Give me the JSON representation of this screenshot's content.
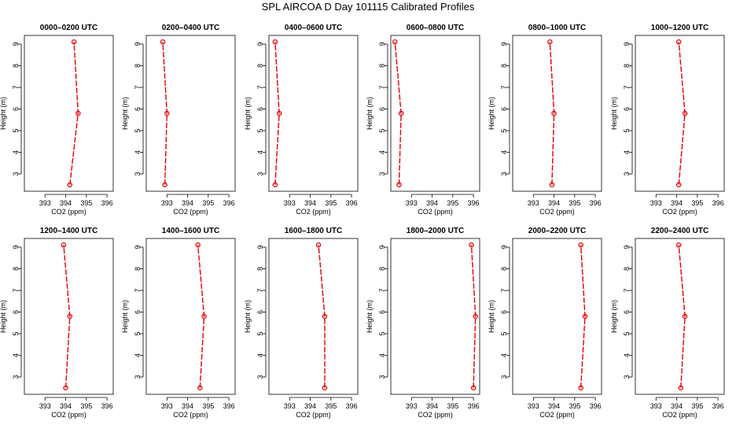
{
  "figure": {
    "title": "SPL AIRCOA D  Day 101115  Calibrated Profiles"
  },
  "style": {
    "line_color": "#e00000",
    "marker_color": "#e00000",
    "axis_color": "#000000"
  },
  "chart_data": [
    {
      "type": "line",
      "title": "0000–0200 UTC",
      "xlabel": "CO2 (ppm)",
      "ylabel": "Height (m)",
      "xlim": [
        392,
        396.3
      ],
      "ylim": [
        2.2,
        9.4
      ],
      "xticks": [
        393,
        394,
        395,
        396
      ],
      "yticks": [
        3,
        4,
        5,
        6,
        7,
        8,
        9
      ],
      "grid": false,
      "series": [
        {
          "x": [
            394.2,
            394.6,
            394.4
          ],
          "y": [
            2.5,
            5.8,
            9.1
          ]
        }
      ]
    },
    {
      "type": "line",
      "title": "0200–0400 UTC",
      "xlabel": "CO2 (ppm)",
      "ylabel": "Height (m)",
      "xlim": [
        392,
        396.3
      ],
      "ylim": [
        2.2,
        9.4
      ],
      "xticks": [
        393,
        394,
        395,
        396
      ],
      "yticks": [
        3,
        4,
        5,
        6,
        7,
        8,
        9
      ],
      "grid": false,
      "series": [
        {
          "x": [
            392.9,
            393.0,
            392.8
          ],
          "y": [
            2.5,
            5.8,
            9.1
          ]
        }
      ]
    },
    {
      "type": "line",
      "title": "0400–0600 UTC",
      "xlabel": "CO2 (ppm)",
      "ylabel": "Height (m)",
      "xlim": [
        392,
        396.3
      ],
      "ylim": [
        2.2,
        9.4
      ],
      "xticks": [
        393,
        394,
        395,
        396
      ],
      "yticks": [
        3,
        4,
        5,
        6,
        7,
        8,
        9
      ],
      "grid": false,
      "series": [
        {
          "x": [
            392.3,
            392.5,
            392.3
          ],
          "y": [
            2.5,
            5.8,
            9.1
          ]
        }
      ]
    },
    {
      "type": "line",
      "title": "0600–0800 UTC",
      "xlabel": "CO2 (ppm)",
      "ylabel": "Height (m)",
      "xlim": [
        392,
        396.3
      ],
      "ylim": [
        2.2,
        9.4
      ],
      "xticks": [
        393,
        394,
        395,
        396
      ],
      "yticks": [
        3,
        4,
        5,
        6,
        7,
        8,
        9
      ],
      "grid": false,
      "series": [
        {
          "x": [
            392.4,
            392.5,
            392.2
          ],
          "y": [
            2.5,
            5.8,
            9.1
          ]
        }
      ]
    },
    {
      "type": "line",
      "title": "0800–1000 UTC",
      "xlabel": "CO2 (ppm)",
      "ylabel": "Height (m)",
      "xlim": [
        392,
        396.3
      ],
      "ylim": [
        2.2,
        9.4
      ],
      "xticks": [
        393,
        394,
        395,
        396
      ],
      "yticks": [
        3,
        4,
        5,
        6,
        7,
        8,
        9
      ],
      "grid": false,
      "series": [
        {
          "x": [
            393.9,
            394.0,
            393.8
          ],
          "y": [
            2.5,
            5.8,
            9.1
          ]
        }
      ]
    },
    {
      "type": "line",
      "title": "1000–1200 UTC",
      "xlabel": "CO2 (ppm)",
      "ylabel": "Height (m)",
      "xlim": [
        392,
        396.3
      ],
      "ylim": [
        2.2,
        9.4
      ],
      "xticks": [
        393,
        394,
        395,
        396
      ],
      "yticks": [
        3,
        4,
        5,
        6,
        7,
        8,
        9
      ],
      "grid": false,
      "series": [
        {
          "x": [
            394.1,
            394.4,
            394.1
          ],
          "y": [
            2.5,
            5.8,
            9.1
          ]
        }
      ]
    },
    {
      "type": "line",
      "title": "1200–1400 UTC",
      "xlabel": "CO2 (ppm)",
      "ylabel": "Height (m)",
      "xlim": [
        392,
        396.3
      ],
      "ylim": [
        2.2,
        9.4
      ],
      "xticks": [
        393,
        394,
        395,
        396
      ],
      "yticks": [
        3,
        4,
        5,
        6,
        7,
        8,
        9
      ],
      "grid": false,
      "series": [
        {
          "x": [
            394.0,
            394.2,
            393.9
          ],
          "y": [
            2.5,
            5.8,
            9.1
          ]
        }
      ]
    },
    {
      "type": "line",
      "title": "1400–1600 UTC",
      "xlabel": "CO2 (ppm)",
      "ylabel": "Height (m)",
      "xlim": [
        392,
        396.3
      ],
      "ylim": [
        2.2,
        9.4
      ],
      "xticks": [
        393,
        394,
        395,
        396
      ],
      "yticks": [
        3,
        4,
        5,
        6,
        7,
        8,
        9
      ],
      "grid": false,
      "series": [
        {
          "x": [
            394.6,
            394.8,
            394.5
          ],
          "y": [
            2.5,
            5.8,
            9.1
          ]
        }
      ]
    },
    {
      "type": "line",
      "title": "1600–1800 UTC",
      "xlabel": "CO2 (ppm)",
      "ylabel": "Height (m)",
      "xlim": [
        392,
        396.3
      ],
      "ylim": [
        2.2,
        9.4
      ],
      "xticks": [
        393,
        394,
        395,
        396
      ],
      "yticks": [
        3,
        4,
        5,
        6,
        7,
        8,
        9
      ],
      "grid": false,
      "series": [
        {
          "x": [
            394.7,
            394.7,
            394.4
          ],
          "y": [
            2.5,
            5.8,
            9.1
          ]
        }
      ]
    },
    {
      "type": "line",
      "title": "1800–2000 UTC",
      "xlabel": "CO2 (ppm)",
      "ylabel": "Height (m)",
      "xlim": [
        392,
        396.3
      ],
      "ylim": [
        2.2,
        9.4
      ],
      "xticks": [
        393,
        394,
        395,
        396
      ],
      "yticks": [
        3,
        4,
        5,
        6,
        7,
        8,
        9
      ],
      "grid": false,
      "series": [
        {
          "x": [
            396.0,
            396.1,
            395.9
          ],
          "y": [
            2.5,
            5.8,
            9.1
          ]
        }
      ]
    },
    {
      "type": "line",
      "title": "2000–2200 UTC",
      "xlabel": "CO2 (ppm)",
      "ylabel": "Height (m)",
      "xlim": [
        392,
        396.3
      ],
      "ylim": [
        2.2,
        9.4
      ],
      "xticks": [
        393,
        394,
        395,
        396
      ],
      "yticks": [
        3,
        4,
        5,
        6,
        7,
        8,
        9
      ],
      "grid": false,
      "series": [
        {
          "x": [
            395.3,
            395.5,
            395.3
          ],
          "y": [
            2.5,
            5.8,
            9.1
          ]
        }
      ]
    },
    {
      "type": "line",
      "title": "2200–2400 UTC",
      "xlabel": "CO2 (ppm)",
      "ylabel": "Height (m)",
      "xlim": [
        392,
        396.3
      ],
      "ylim": [
        2.2,
        9.4
      ],
      "xticks": [
        393,
        394,
        395,
        396
      ],
      "yticks": [
        3,
        4,
        5,
        6,
        7,
        8,
        9
      ],
      "grid": false,
      "series": [
        {
          "x": [
            394.2,
            394.4,
            394.1
          ],
          "y": [
            2.5,
            5.8,
            9.1
          ]
        }
      ]
    }
  ]
}
